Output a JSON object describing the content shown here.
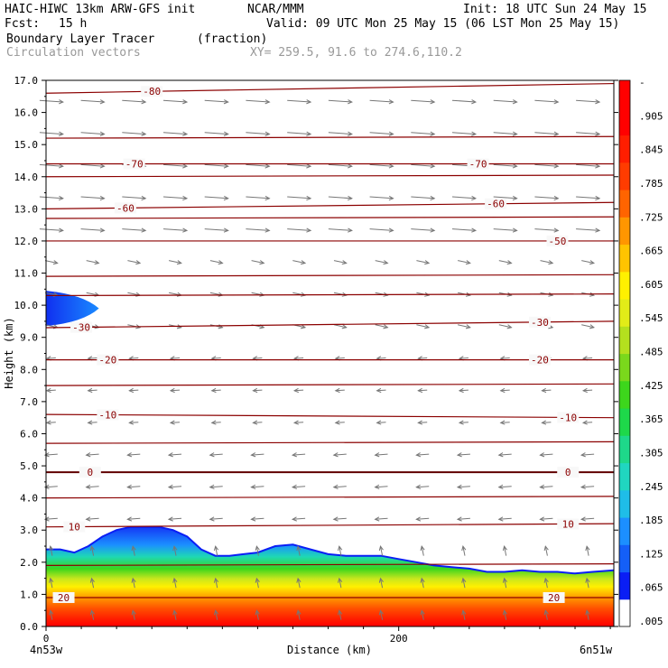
{
  "header": {
    "model": "HAIC-HIWC 13km ARW-GFS init",
    "org": "NCAR/MMM",
    "init": "Init: 18 UTC Sun 24 May 15",
    "fcst_label": "Fcst:",
    "fcst_value": "15 h",
    "valid": "Valid: 09 UTC Mon 25 May 15 (06 LST Mon 25 May 15)",
    "field": "Boundary Layer Tracer",
    "units": "(fraction)",
    "vectors": "Circulation vectors",
    "xy": "XY= 259.5, 91.6 to 274.6,110.2"
  },
  "chart_data": {
    "type": "heatmap",
    "title": "Boundary Layer Tracer (fraction)",
    "subtitle": "Circulation vectors",
    "xlabel": "Distance (km)",
    "ylabel": "Height (km)",
    "xlim": [
      0,
      322
    ],
    "ylim": [
      0,
      17
    ],
    "x_ticks": [
      0,
      200
    ],
    "x_tick_labels": [
      "0",
      "200"
    ],
    "x_endpoint_labels": [
      "4n53w",
      "6n51w"
    ],
    "y_ticks": [
      0,
      1,
      2,
      3,
      4,
      5,
      6,
      7,
      8,
      9,
      10,
      11,
      12,
      13,
      14,
      15,
      16,
      17
    ],
    "y_tick_labels": [
      "0.0",
      "1.0",
      "2.0",
      "3.0",
      "4.0",
      "5.0",
      "6.0",
      "7.0",
      "8.0",
      "9.0",
      "10.0",
      "11.0",
      "12.0",
      "13.0",
      "14.0",
      "15.0",
      "16.0",
      "17.0"
    ],
    "colorbar": {
      "labels": [
        ".005",
        ".065",
        ".125",
        ".185",
        ".245",
        ".305",
        ".365",
        ".425",
        ".485",
        ".545",
        ".605",
        ".665",
        ".725",
        ".785",
        ".845",
        ".905",
        "-"
      ],
      "colors": [
        "#ffffff",
        "#0a1ef5",
        "#145ff8",
        "#1c8fff",
        "#1fbde8",
        "#20d6c0",
        "#1ed88a",
        "#1ed84a",
        "#3dd61c",
        "#7ad81c",
        "#b4e01e",
        "#e2ec18",
        "#fff000",
        "#ffc400",
        "#ff9600",
        "#ff6400",
        "#ff3c00",
        "#ff1e00",
        "#ff0000",
        "#ff0000"
      ]
    },
    "boundary_layer_top_km": {
      "x": [
        0,
        8,
        16,
        24,
        32,
        40,
        48,
        56,
        64,
        72,
        80,
        88,
        96,
        104,
        112,
        120,
        130,
        140,
        150,
        160,
        170,
        180,
        190,
        200,
        210,
        220,
        230,
        240,
        250,
        260,
        270,
        280,
        290,
        300,
        310,
        322
      ],
      "y": [
        2.4,
        2.4,
        2.3,
        2.5,
        2.8,
        3.0,
        3.1,
        3.1,
        3.1,
        3.0,
        2.8,
        2.4,
        2.2,
        2.2,
        2.25,
        2.3,
        2.5,
        2.55,
        2.4,
        2.25,
        2.2,
        2.2,
        2.2,
        2.1,
        2.0,
        1.9,
        1.85,
        1.8,
        1.7,
        1.7,
        1.75,
        1.7,
        1.7,
        1.65,
        1.7,
        1.75
      ]
    },
    "upper_tracer": {
      "x_max_km": 30,
      "y_center_km": 9.9,
      "half_thickness_km": 0.55
    },
    "temperature_contours": [
      {
        "level": "20",
        "y_left": 0.9,
        "y_right": 0.9,
        "label_x": [
          10,
          288
        ]
      },
      {
        "level": "10",
        "y_left": 3.1,
        "y_right": 3.2,
        "label_x": [
          16,
          296
        ]
      },
      {
        "level": "0",
        "y_left": 4.8,
        "y_right": 4.8,
        "label_x": [
          25,
          296
        ]
      },
      {
        "level": "-10",
        "y_left": 6.6,
        "y_right": 6.5,
        "label_x": [
          35,
          296
        ]
      },
      {
        "level": "-20",
        "y_left": 8.3,
        "y_right": 8.3,
        "label_x": [
          35,
          280
        ]
      },
      {
        "level": "-30",
        "y_left": 9.3,
        "y_right": 9.5,
        "label_x": [
          20,
          280
        ]
      },
      {
        "level": "-50",
        "y_left": 12.0,
        "y_right": 12.0,
        "label_x": [
          290
        ]
      },
      {
        "level": "-60",
        "y_left": 13.0,
        "y_right": 13.2,
        "label_x": [
          45,
          255
        ]
      },
      {
        "level": "-70",
        "y_left": 14.4,
        "y_right": 14.4,
        "label_x": [
          50,
          245
        ]
      },
      {
        "level": "-80",
        "y_left": 16.6,
        "y_right": 16.9,
        "label_x": [
          60
        ]
      }
    ],
    "extra_contours_km": [
      1.9,
      4.0,
      5.7,
      7.5,
      10.3,
      10.9,
      12.7,
      14.0,
      15.2
    ]
  }
}
